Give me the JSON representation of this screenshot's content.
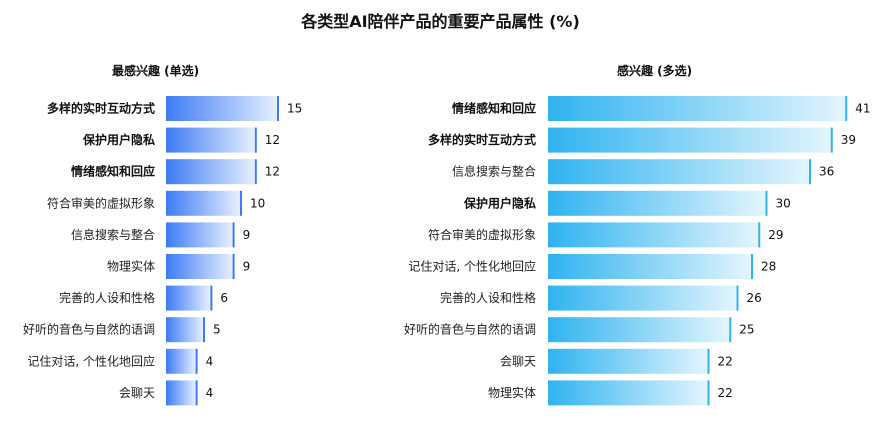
{
  "page": {
    "title": "各类型AI陪伴产品的重要产品属性 (%)"
  },
  "chart_data": [
    {
      "type": "bar",
      "orientation": "horizontal",
      "title": "最感兴趣 (单选)",
      "categories": [
        "多样的实时互动方式",
        "保护用户隐私",
        "情绪感知和回应",
        "符合审美的虚拟形象",
        "信息搜索与整合",
        "物理实体",
        "完善的人设和性格",
        "好听的音色与自然的语调",
        "记住对话, 个性化地回应",
        "会聊天"
      ],
      "values": [
        15,
        12,
        12,
        10,
        9,
        9,
        6,
        5,
        4,
        4
      ],
      "bold": [
        true,
        true,
        true,
        false,
        false,
        false,
        false,
        false,
        false,
        false
      ],
      "color": "#3d7bf5"
    },
    {
      "type": "bar",
      "orientation": "horizontal",
      "title": "感兴趣 (多选)",
      "categories": [
        "情绪感知和回应",
        "多样的实时互动方式",
        "信息搜索与整合",
        "保护用户隐私",
        "符合审美的虚拟形象",
        "记住对话, 个性化地回应",
        "完善的人设和性格",
        "好听的音色与自然的语调",
        "会聊天",
        "物理实体"
      ],
      "values": [
        41,
        39,
        36,
        30,
        29,
        28,
        26,
        25,
        22,
        22
      ],
      "bold": [
        true,
        true,
        false,
        true,
        false,
        false,
        false,
        false,
        false,
        false
      ],
      "color": "#2fb3f0"
    }
  ]
}
